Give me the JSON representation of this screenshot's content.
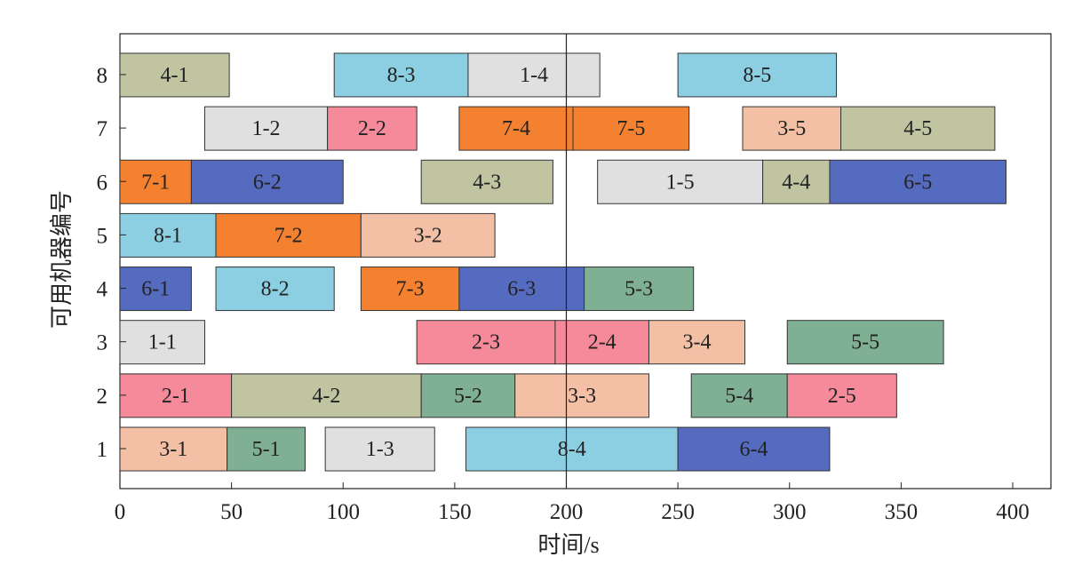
{
  "chart_data": {
    "type": "gantt",
    "xlabel": "时间/s",
    "ylabel": "可用机器编号",
    "xlim": [
      0,
      418
    ],
    "x_ticks": [
      "0",
      "50",
      "100",
      "150",
      "200",
      "250",
      "300",
      "350",
      "400"
    ],
    "y_ticks": [
      "1",
      "2",
      "3",
      "4",
      "5",
      "6",
      "7",
      "8"
    ],
    "reference_line_x": 200,
    "job_colors": {
      "1": "#e0e0e0",
      "2": "#f48a9a",
      "3": "#f4c0a5",
      "4": "#c0c4a0",
      "5": "#80b094",
      "6": "#546bc0",
      "7": "#f48130",
      "8": "#8ccfe2"
    },
    "tasks": [
      {
        "machine": 8,
        "label": "4-1",
        "job": 4,
        "start": 0,
        "end": 49
      },
      {
        "machine": 8,
        "label": "8-3",
        "job": 8,
        "start": 96,
        "end": 156
      },
      {
        "machine": 8,
        "label": "1-4",
        "job": 1,
        "start": 156,
        "end": 215
      },
      {
        "machine": 8,
        "label": "8-5",
        "job": 8,
        "start": 250,
        "end": 321
      },
      {
        "machine": 7,
        "label": "1-2",
        "job": 1,
        "start": 38,
        "end": 93
      },
      {
        "machine": 7,
        "label": "2-2",
        "job": 2,
        "start": 93,
        "end": 133
      },
      {
        "machine": 7,
        "label": "7-4",
        "job": 7,
        "start": 152,
        "end": 203
      },
      {
        "machine": 7,
        "label": "7-5",
        "job": 7,
        "start": 203,
        "end": 255
      },
      {
        "machine": 7,
        "label": "3-5",
        "job": 3,
        "start": 279,
        "end": 323
      },
      {
        "machine": 7,
        "label": "4-5",
        "job": 4,
        "start": 323,
        "end": 392
      },
      {
        "machine": 6,
        "label": "7-1",
        "job": 7,
        "start": 0,
        "end": 32
      },
      {
        "machine": 6,
        "label": "6-2",
        "job": 6,
        "start": 32,
        "end": 100
      },
      {
        "machine": 6,
        "label": "4-3",
        "job": 4,
        "start": 135,
        "end": 194
      },
      {
        "machine": 6,
        "label": "1-5",
        "job": 1,
        "start": 214,
        "end": 288
      },
      {
        "machine": 6,
        "label": "4-4",
        "job": 4,
        "start": 288,
        "end": 318
      },
      {
        "machine": 6,
        "label": "6-5",
        "job": 6,
        "start": 318,
        "end": 397
      },
      {
        "machine": 5,
        "label": "8-1",
        "job": 8,
        "start": 0,
        "end": 43
      },
      {
        "machine": 5,
        "label": "7-2",
        "job": 7,
        "start": 43,
        "end": 108
      },
      {
        "machine": 5,
        "label": "3-2",
        "job": 3,
        "start": 108,
        "end": 168
      },
      {
        "machine": 4,
        "label": "6-1",
        "job": 6,
        "start": 0,
        "end": 32
      },
      {
        "machine": 4,
        "label": "8-2",
        "job": 8,
        "start": 43,
        "end": 96
      },
      {
        "machine": 4,
        "label": "7-3",
        "job": 7,
        "start": 108,
        "end": 152
      },
      {
        "machine": 4,
        "label": "6-3",
        "job": 6,
        "start": 152,
        "end": 208
      },
      {
        "machine": 4,
        "label": "5-3",
        "job": 5,
        "start": 208,
        "end": 257
      },
      {
        "machine": 3,
        "label": "1-1",
        "job": 1,
        "start": 0,
        "end": 38
      },
      {
        "machine": 3,
        "label": "2-3",
        "job": 2,
        "start": 133,
        "end": 195
      },
      {
        "machine": 3,
        "label": "2-4",
        "job": 2,
        "start": 195,
        "end": 237
      },
      {
        "machine": 3,
        "label": "3-4",
        "job": 3,
        "start": 237,
        "end": 280
      },
      {
        "machine": 3,
        "label": "5-5",
        "job": 5,
        "start": 299,
        "end": 369
      },
      {
        "machine": 2,
        "label": "2-1",
        "job": 2,
        "start": 0,
        "end": 50
      },
      {
        "machine": 2,
        "label": "4-2",
        "job": 4,
        "start": 50,
        "end": 135
      },
      {
        "machine": 2,
        "label": "5-2",
        "job": 5,
        "start": 135,
        "end": 177
      },
      {
        "machine": 2,
        "label": "3-3",
        "job": 3,
        "start": 177,
        "end": 237
      },
      {
        "machine": 2,
        "label": "5-4",
        "job": 5,
        "start": 256,
        "end": 299
      },
      {
        "machine": 2,
        "label": "2-5",
        "job": 2,
        "start": 299,
        "end": 348
      },
      {
        "machine": 1,
        "label": "3-1",
        "job": 3,
        "start": 0,
        "end": 48
      },
      {
        "machine": 1,
        "label": "5-1",
        "job": 5,
        "start": 48,
        "end": 83
      },
      {
        "machine": 1,
        "label": "1-3",
        "job": 1,
        "start": 92,
        "end": 141
      },
      {
        "machine": 1,
        "label": "8-4",
        "job": 8,
        "start": 155,
        "end": 250
      },
      {
        "machine": 1,
        "label": "6-4",
        "job": 6,
        "start": 250,
        "end": 318
      }
    ]
  }
}
